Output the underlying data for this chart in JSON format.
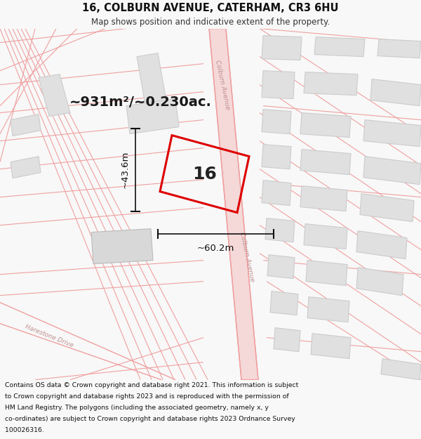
{
  "title_line1": "16, COLBURN AVENUE, CATERHAM, CR3 6HU",
  "title_line2": "Map shows position and indicative extent of the property.",
  "area_text": "~931m²/~0.230ac.",
  "plot_number": "16",
  "dim_width": "~60.2m",
  "dim_height": "~43.6m",
  "footer_lines": [
    "Contains OS data © Crown copyright and database right 2021. This information is subject",
    "to Crown copyright and database rights 2023 and is reproduced with the permission of",
    "HM Land Registry. The polygons (including the associated geometry, namely x, y",
    "co-ordinates) are subject to Crown copyright and database rights 2023 Ordnance Survey",
    "100026316."
  ],
  "bg_color": "#f8f8f8",
  "road_line_color": "#f0a0a0",
  "road_fill_color": "#f5d8d8",
  "plot_edge_color": "#dd0000",
  "building_fill": "#e0e0e0",
  "building_edge": "#cccccc",
  "street_label_color": "#c09090",
  "harestone_label": "Harestone Drive",
  "colburn_label": "Colburn Avenue"
}
